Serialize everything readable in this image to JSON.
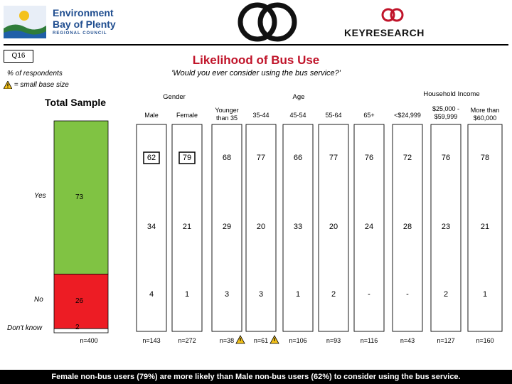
{
  "header": {
    "org_line1": "Environment",
    "org_line2": "Bay of Plenty",
    "org_line3": "REGIONAL COUNCIL",
    "brand": "KEYRESEARCH"
  },
  "question_code": "Q16",
  "title": "Likelihood of Bus Use",
  "subtitle": "'Would you ever consider using the bus service?'",
  "base_note": "% of respondents",
  "small_base_note": "= small base size",
  "total_label": "Total Sample",
  "groups": [
    "Gender",
    "Age",
    "Household Income"
  ],
  "footer": "Female non-bus users (79%) are more likely than Male non-bus users (62%) to consider using the bus service.",
  "colors": {
    "yes": "#80c343",
    "no": "#ed1c24",
    "title": "#c0142a"
  },
  "chart_data": {
    "type": "bar",
    "stacked": true,
    "unit": "% of respondents",
    "total": {
      "label": "Total Sample",
      "yes": 73,
      "no": 26,
      "dont_know": 2,
      "n": "n=400"
    },
    "row_labels": [
      "Yes",
      "No",
      "Don't know"
    ],
    "categories": [
      "Male",
      "Female",
      "Younger than 35",
      "35-44",
      "45-54",
      "55-64",
      "65+",
      "<$24,999",
      "$25,000 - $59,999",
      "More than $60,000"
    ],
    "series": [
      {
        "name": "Yes",
        "values": [
          "62",
          "79",
          "68",
          "77",
          "66",
          "77",
          "76",
          "72",
          "76",
          "78"
        ]
      },
      {
        "name": "No",
        "values": [
          "34",
          "21",
          "29",
          "20",
          "33",
          "20",
          "24",
          "28",
          "23",
          "21"
        ]
      },
      {
        "name": "Don't know",
        "values": [
          "4",
          "1",
          "3",
          "3",
          "1",
          "2",
          "-",
          "-",
          "2",
          "1"
        ]
      }
    ],
    "n_values": [
      "n=143",
      "n=272",
      "n=38",
      "n=61",
      "n=106",
      "n=93",
      "n=116",
      "n=43",
      "n=127",
      "n=160"
    ],
    "small_base": [
      false,
      false,
      true,
      true,
      false,
      false,
      false,
      false,
      false,
      false
    ],
    "highlight": {
      "series": "Yes",
      "categories": [
        "Male",
        "Female"
      ]
    }
  }
}
